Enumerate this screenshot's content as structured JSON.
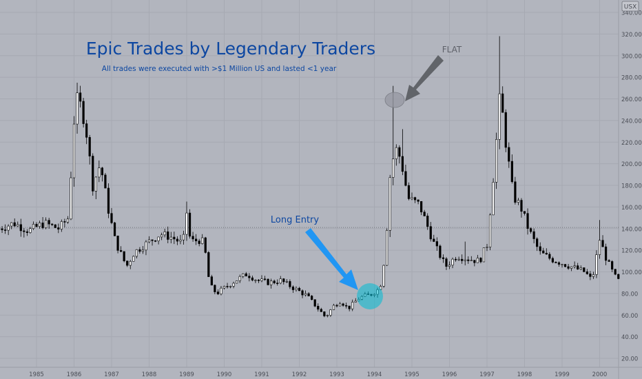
{
  "currency_label": "USX",
  "colors": {
    "background": "#b2b5be",
    "grid": "#a6a9b2",
    "candle": "#000000",
    "wick": "#000000",
    "title": "#0d47a1",
    "long_arrow": "#2196f3",
    "long_circle": "#00bcd4",
    "flat_arrow": "#616469",
    "flat_circle": "#9598a1",
    "axis_text": "#4a4d55",
    "reference_line": "#6f7279"
  },
  "annotations": {
    "title": "Epic Trades by Legendary Traders",
    "subtitle": "All trades were executed with >$1 Million US and lasted <1 year",
    "long_entry": "Long Entry",
    "flat": "FLAT"
  },
  "chart_data": {
    "type": "candlestick",
    "title": "Epic Trades by Legendary Traders",
    "subtitle": "All trades were executed with >$1 Million US and lasted <1 year",
    "xlabel": "",
    "ylabel": "",
    "ylim": [
      15,
      345
    ],
    "y_ticks": [
      20,
      40,
      60,
      80,
      100,
      120,
      140,
      160,
      180,
      200,
      220,
      240,
      260,
      280,
      300,
      320,
      340
    ],
    "y_tick_labels": [
      "20.00",
      "40.00",
      "60.00",
      "80.00",
      "100.00",
      "120.00",
      "140.00",
      "160.00",
      "180.00",
      "200.00",
      "220.00",
      "240.00",
      "260.00",
      "280.00",
      "300.00",
      "320.00",
      "340.00"
    ],
    "x_tick_labels": [
      "1985",
      "1986",
      "1987",
      "1988",
      "1989",
      "1990",
      "1991",
      "1992",
      "1993",
      "1994",
      "1995",
      "1996",
      "1997",
      "1998",
      "1999",
      "2000"
    ],
    "reference_line_y": 141,
    "grid": true,
    "series": [
      {
        "keypoints": [
          [
            1984.0,
            140
          ],
          [
            1984.4,
            145
          ],
          [
            1984.8,
            138
          ],
          [
            1985.2,
            145
          ],
          [
            1985.6,
            140
          ],
          [
            1985.85,
            150
          ],
          [
            1986.0,
            240
          ],
          [
            1986.1,
            262
          ],
          [
            1986.3,
            238
          ],
          [
            1986.5,
            180
          ],
          [
            1986.7,
            200
          ],
          [
            1986.9,
            160
          ],
          [
            1987.1,
            128
          ],
          [
            1987.4,
            105
          ],
          [
            1987.6,
            118
          ],
          [
            1987.8,
            123
          ],
          [
            1988.0,
            128
          ],
          [
            1988.3,
            135
          ],
          [
            1988.6,
            132
          ],
          [
            1988.9,
            126
          ],
          [
            1989.0,
            155
          ],
          [
            1989.1,
            128
          ],
          [
            1989.4,
            130
          ],
          [
            1989.55,
            110
          ],
          [
            1989.6,
            88
          ],
          [
            1989.8,
            80
          ],
          [
            1990.0,
            85
          ],
          [
            1990.3,
            92
          ],
          [
            1990.6,
            98
          ],
          [
            1990.9,
            92
          ],
          [
            1991.2,
            90
          ],
          [
            1991.5,
            92
          ],
          [
            1991.9,
            84
          ],
          [
            1992.2,
            78
          ],
          [
            1992.5,
            66
          ],
          [
            1992.7,
            58
          ],
          [
            1992.9,
            68
          ],
          [
            1993.1,
            73
          ],
          [
            1993.3,
            66
          ],
          [
            1993.6,
            76
          ],
          [
            1993.9,
            79
          ],
          [
            1994.15,
            85
          ],
          [
            1994.3,
            120
          ],
          [
            1994.4,
            185
          ],
          [
            1994.55,
            215
          ],
          [
            1994.7,
            205
          ],
          [
            1994.9,
            168
          ],
          [
            1995.2,
            162
          ],
          [
            1995.6,
            125
          ],
          [
            1995.9,
            105
          ],
          [
            1996.2,
            115
          ],
          [
            1996.5,
            112
          ],
          [
            1996.8,
            110
          ],
          [
            1997.0,
            125
          ],
          [
            1997.2,
            200
          ],
          [
            1997.35,
            265
          ],
          [
            1997.5,
            220
          ],
          [
            1997.7,
            170
          ],
          [
            1997.9,
            160
          ],
          [
            1998.1,
            140
          ],
          [
            1998.4,
            118
          ],
          [
            1998.7,
            112
          ],
          [
            1999.0,
            108
          ],
          [
            1999.3,
            104
          ],
          [
            1999.6,
            100
          ],
          [
            1999.8,
            92
          ],
          [
            2000.0,
            130
          ],
          [
            2000.2,
            110
          ],
          [
            2000.4,
            96
          ],
          [
            2000.55,
            90
          ]
        ],
        "start_year": 1984.0,
        "months": 199
      }
    ],
    "annotations": [
      {
        "text": "Long Entry",
        "x": 1993.7,
        "y": 78,
        "shape": "circle"
      },
      {
        "text": "FLAT",
        "x": 1994.45,
        "y": 260,
        "shape": "ellipse"
      }
    ]
  }
}
